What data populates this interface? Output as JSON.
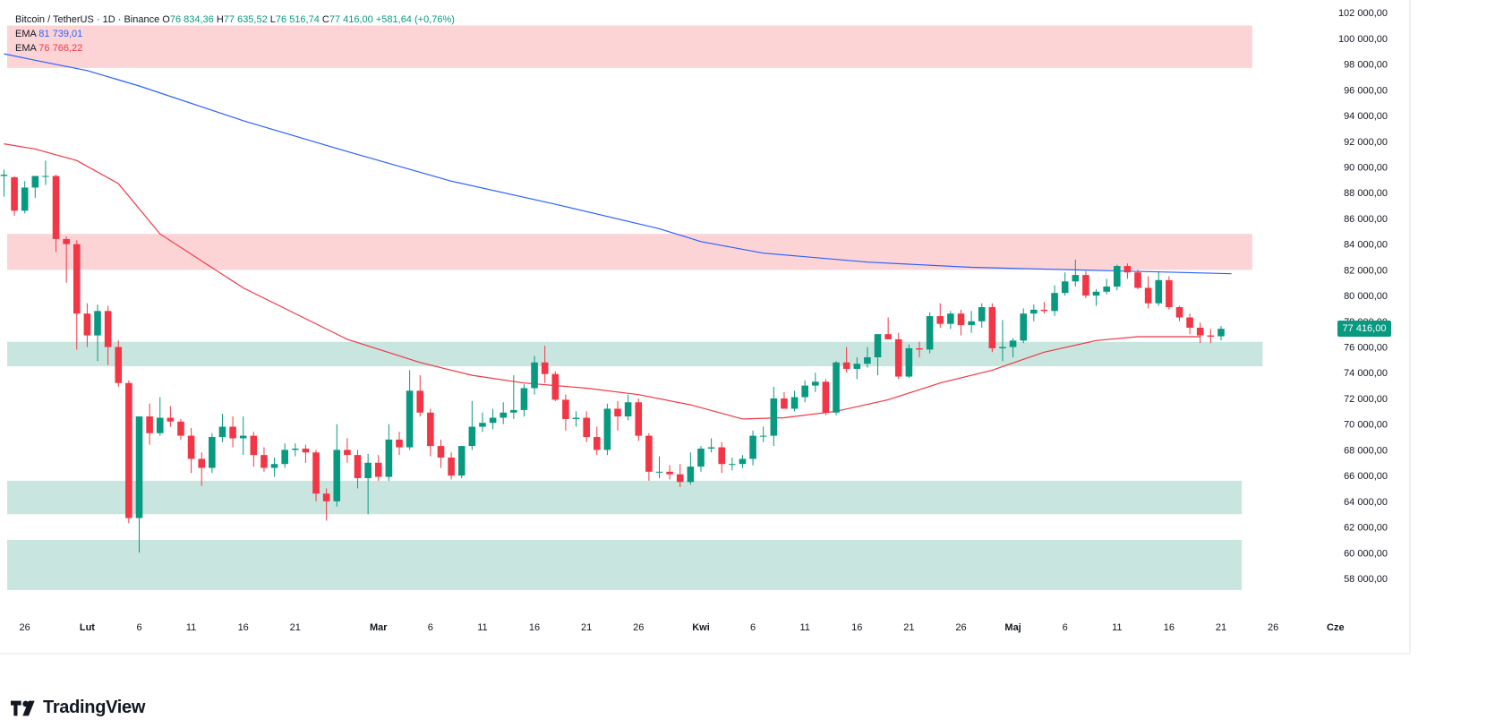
{
  "header": {
    "symbol_line": "Bitcoin / TetherUS · 1D · Binance",
    "ohlc": [
      {
        "key": "O",
        "value": "76 834,36"
      },
      {
        "key": "H",
        "value": "77 635,52"
      },
      {
        "key": "L",
        "value": "76 516,74"
      },
      {
        "key": "C",
        "value": "77 416,00"
      }
    ],
    "change": "+581,64 (+0,76%)",
    "ema_label_1": "EMA",
    "ema_value_1": "81 739,01",
    "ema_label_2": "EMA",
    "ema_value_2": "76 766,22"
  },
  "branding": {
    "logo_text": "TradingView"
  },
  "colors": {
    "up": "#089981",
    "down": "#f23645",
    "ema_slow": "#2962ff",
    "ema_fast": "#f23645",
    "resistance_zone": "#fdd4d6",
    "support_zone": "#c8e6df"
  },
  "chart_data": {
    "type": "candlestick",
    "title": "Bitcoin / TetherUS · 1D · Binance",
    "ylim": [
      56000,
      103000
    ],
    "y_ticks": [
      58000,
      60000,
      62000,
      64000,
      66000,
      68000,
      70000,
      72000,
      74000,
      76000,
      78000,
      80000,
      82000,
      84000,
      86000,
      88000,
      90000,
      92000,
      94000,
      96000,
      98000,
      100000,
      102000
    ],
    "y_tick_labels": [
      "58 000,00",
      "60 000,00",
      "62 000,00",
      "64 000,00",
      "66 000,00",
      "68 000,00",
      "70 000,00",
      "72 000,00",
      "74 000,00",
      "76 000,00",
      "78 000,00",
      "80 000,00",
      "82 000,00",
      "84 000,00",
      "86 000,00",
      "88 000,00",
      "90 000,00",
      "92 000,00",
      "94 000,00",
      "96 000,00",
      "98 000,00",
      "100 000,00",
      "102 000,00"
    ],
    "x_ticks": [
      {
        "day": -1,
        "label": "26"
      },
      {
        "day": 5,
        "label": "Lut"
      },
      {
        "day": 10,
        "label": "6"
      },
      {
        "day": 15,
        "label": "11"
      },
      {
        "day": 20,
        "label": "16"
      },
      {
        "day": 25,
        "label": "21"
      },
      {
        "day": 33,
        "label": "Mar"
      },
      {
        "day": 38,
        "label": "6"
      },
      {
        "day": 43,
        "label": "11"
      },
      {
        "day": 48,
        "label": "16"
      },
      {
        "day": 53,
        "label": "21"
      },
      {
        "day": 58,
        "label": "26"
      },
      {
        "day": 64,
        "label": "Kwi"
      },
      {
        "day": 69,
        "label": "6"
      },
      {
        "day": 74,
        "label": "11"
      },
      {
        "day": 79,
        "label": "16"
      },
      {
        "day": 84,
        "label": "21"
      },
      {
        "day": 89,
        "label": "26"
      },
      {
        "day": 94,
        "label": "Maj"
      },
      {
        "day": 99,
        "label": "6"
      },
      {
        "day": 104,
        "label": "11"
      },
      {
        "day": 109,
        "label": "16"
      },
      {
        "day": 114,
        "label": "21"
      },
      {
        "day": 119,
        "label": "26"
      },
      {
        "day": 125,
        "label": "Cze"
      }
    ],
    "last_price_label": "77 416,00",
    "last_price": 77416,
    "zones": [
      {
        "kind": "resistance",
        "y_from": 97700,
        "y_to": 101000,
        "x_to_day": 117
      },
      {
        "kind": "resistance",
        "y_from": 82000,
        "y_to": 84800,
        "x_to_day": 117
      },
      {
        "kind": "support",
        "y_from": 74500,
        "y_to": 76400,
        "x_to_day": 118
      },
      {
        "kind": "support",
        "y_from": 63000,
        "y_to": 65600,
        "x_to_day": 116
      },
      {
        "kind": "support",
        "y_from": 57100,
        "y_to": 61000,
        "x_to_day": 116
      }
    ],
    "series": [
      {
        "name": "EMA",
        "color": "#2962ff",
        "points": [
          [
            -3,
            98800
          ],
          [
            0,
            98300
          ],
          [
            5,
            97500
          ],
          [
            10,
            96300
          ],
          [
            20,
            93600
          ],
          [
            30,
            91200
          ],
          [
            40,
            88900
          ],
          [
            50,
            87100
          ],
          [
            60,
            85200
          ],
          [
            64,
            84200
          ],
          [
            70,
            83300
          ],
          [
            80,
            82600
          ],
          [
            90,
            82200
          ],
          [
            100,
            82000
          ],
          [
            110,
            81800
          ],
          [
            115,
            81700
          ]
        ]
      },
      {
        "name": "EMA",
        "color": "#f23645",
        "points": [
          [
            -3,
            91800
          ],
          [
            0,
            91400
          ],
          [
            4,
            90500
          ],
          [
            8,
            88700
          ],
          [
            12,
            84800
          ],
          [
            20,
            80600
          ],
          [
            30,
            76600
          ],
          [
            37,
            74800
          ],
          [
            42,
            73800
          ],
          [
            47,
            73200
          ],
          [
            53,
            72800
          ],
          [
            58,
            72300
          ],
          [
            63,
            71500
          ],
          [
            68,
            70400
          ],
          [
            72,
            70500
          ],
          [
            77,
            71000
          ],
          [
            82,
            71900
          ],
          [
            87,
            73200
          ],
          [
            92,
            74200
          ],
          [
            97,
            75600
          ],
          [
            102,
            76500
          ],
          [
            106,
            76800
          ],
          [
            110,
            76800
          ],
          [
            112,
            76800
          ]
        ]
      }
    ],
    "candles": [
      {
        "d": -3,
        "o": 89300,
        "h": 89800,
        "l": 87700,
        "c": 89400
      },
      {
        "d": -2,
        "o": 89200,
        "h": 89300,
        "l": 86200,
        "c": 86600
      },
      {
        "d": -1,
        "o": 86600,
        "h": 88900,
        "l": 86400,
        "c": 88400
      },
      {
        "d": 0,
        "o": 88400,
        "h": 89300,
        "l": 87600,
        "c": 89300
      },
      {
        "d": 1,
        "o": 89300,
        "h": 90500,
        "l": 88600,
        "c": 89300
      },
      {
        "d": 2,
        "o": 89300,
        "h": 89400,
        "l": 83400,
        "c": 84400
      },
      {
        "d": 3,
        "o": 84400,
        "h": 84600,
        "l": 81000,
        "c": 84000
      },
      {
        "d": 4,
        "o": 84000,
        "h": 84300,
        "l": 75800,
        "c": 78600
      },
      {
        "d": 5,
        "o": 78600,
        "h": 79400,
        "l": 76000,
        "c": 76900
      },
      {
        "d": 6,
        "o": 76900,
        "h": 79300,
        "l": 74900,
        "c": 78800
      },
      {
        "d": 7,
        "o": 78800,
        "h": 79200,
        "l": 74600,
        "c": 76000
      },
      {
        "d": 8,
        "o": 76000,
        "h": 76500,
        "l": 72900,
        "c": 73200
      },
      {
        "d": 9,
        "o": 73200,
        "h": 73400,
        "l": 62300,
        "c": 62700
      },
      {
        "d": 10,
        "o": 62700,
        "h": 70600,
        "l": 60000,
        "c": 70600
      },
      {
        "d": 11,
        "o": 70600,
        "h": 71600,
        "l": 68400,
        "c": 69300
      },
      {
        "d": 12,
        "o": 69300,
        "h": 72100,
        "l": 69100,
        "c": 70500
      },
      {
        "d": 13,
        "o": 70500,
        "h": 71400,
        "l": 69800,
        "c": 70200
      },
      {
        "d": 14,
        "o": 70200,
        "h": 70400,
        "l": 68800,
        "c": 69100
      },
      {
        "d": 15,
        "o": 69100,
        "h": 69700,
        "l": 66200,
        "c": 67300
      },
      {
        "d": 16,
        "o": 67300,
        "h": 67800,
        "l": 65200,
        "c": 66600
      },
      {
        "d": 17,
        "o": 66600,
        "h": 69300,
        "l": 66200,
        "c": 69000
      },
      {
        "d": 18,
        "o": 69000,
        "h": 70800,
        "l": 68600,
        "c": 69800
      },
      {
        "d": 19,
        "o": 69800,
        "h": 70600,
        "l": 68200,
        "c": 68900
      },
      {
        "d": 20,
        "o": 68900,
        "h": 70600,
        "l": 67600,
        "c": 69100
      },
      {
        "d": 21,
        "o": 69100,
        "h": 69400,
        "l": 66700,
        "c": 67600
      },
      {
        "d": 22,
        "o": 67600,
        "h": 68200,
        "l": 66300,
        "c": 66600
      },
      {
        "d": 23,
        "o": 66600,
        "h": 67400,
        "l": 65900,
        "c": 66900
      },
      {
        "d": 24,
        "o": 66900,
        "h": 68500,
        "l": 66600,
        "c": 68000
      },
      {
        "d": 25,
        "o": 68000,
        "h": 68500,
        "l": 67500,
        "c": 68100
      },
      {
        "d": 26,
        "o": 68100,
        "h": 68400,
        "l": 67000,
        "c": 67800
      },
      {
        "d": 27,
        "o": 67800,
        "h": 68000,
        "l": 64000,
        "c": 64600
      },
      {
        "d": 28,
        "o": 64600,
        "h": 65000,
        "l": 62500,
        "c": 64000
      },
      {
        "d": 29,
        "o": 64000,
        "h": 70000,
        "l": 63600,
        "c": 68000
      },
      {
        "d": 30,
        "o": 68000,
        "h": 68900,
        "l": 67000,
        "c": 67600
      },
      {
        "d": 31,
        "o": 67600,
        "h": 68000,
        "l": 65000,
        "c": 65800
      },
      {
        "d": 32,
        "o": 65800,
        "h": 67700,
        "l": 63000,
        "c": 67000
      },
      {
        "d": 33,
        "o": 67000,
        "h": 67600,
        "l": 65600,
        "c": 65900
      },
      {
        "d": 34,
        "o": 65900,
        "h": 70000,
        "l": 65600,
        "c": 68800
      },
      {
        "d": 35,
        "o": 68800,
        "h": 69400,
        "l": 67600,
        "c": 68200
      },
      {
        "d": 36,
        "o": 68200,
        "h": 74200,
        "l": 68000,
        "c": 72600
      },
      {
        "d": 37,
        "o": 72600,
        "h": 73800,
        "l": 70600,
        "c": 70900
      },
      {
        "d": 38,
        "o": 70900,
        "h": 71200,
        "l": 67500,
        "c": 68300
      },
      {
        "d": 39,
        "o": 68300,
        "h": 68800,
        "l": 66600,
        "c": 67400
      },
      {
        "d": 40,
        "o": 67400,
        "h": 67800,
        "l": 65700,
        "c": 66000
      },
      {
        "d": 41,
        "o": 66000,
        "h": 68300,
        "l": 65800,
        "c": 68300
      },
      {
        "d": 42,
        "o": 68300,
        "h": 71800,
        "l": 68000,
        "c": 69800
      },
      {
        "d": 43,
        "o": 69800,
        "h": 70900,
        "l": 69400,
        "c": 70100
      },
      {
        "d": 44,
        "o": 70100,
        "h": 71200,
        "l": 69600,
        "c": 70500
      },
      {
        "d": 45,
        "o": 70500,
        "h": 71700,
        "l": 70000,
        "c": 70900
      },
      {
        "d": 46,
        "o": 70900,
        "h": 73800,
        "l": 70400,
        "c": 71100
      },
      {
        "d": 47,
        "o": 71100,
        "h": 73100,
        "l": 70600,
        "c": 72800
      },
      {
        "d": 48,
        "o": 72800,
        "h": 75300,
        "l": 72300,
        "c": 74800
      },
      {
        "d": 49,
        "o": 74800,
        "h": 76100,
        "l": 73200,
        "c": 73900
      },
      {
        "d": 50,
        "o": 73900,
        "h": 74100,
        "l": 71800,
        "c": 71900
      },
      {
        "d": 51,
        "o": 71900,
        "h": 72300,
        "l": 69500,
        "c": 70400
      },
      {
        "d": 52,
        "o": 70400,
        "h": 71000,
        "l": 69800,
        "c": 70500
      },
      {
        "d": 53,
        "o": 70500,
        "h": 71000,
        "l": 68600,
        "c": 69000
      },
      {
        "d": 54,
        "o": 69000,
        "h": 69800,
        "l": 67600,
        "c": 68000
      },
      {
        "d": 55,
        "o": 68000,
        "h": 71600,
        "l": 67600,
        "c": 71200
      },
      {
        "d": 56,
        "o": 71200,
        "h": 71800,
        "l": 69500,
        "c": 70600
      },
      {
        "d": 57,
        "o": 70600,
        "h": 72300,
        "l": 70300,
        "c": 71700
      },
      {
        "d": 58,
        "o": 71700,
        "h": 72000,
        "l": 68700,
        "c": 69100
      },
      {
        "d": 59,
        "o": 69100,
        "h": 69300,
        "l": 65600,
        "c": 66300
      },
      {
        "d": 60,
        "o": 66300,
        "h": 67500,
        "l": 65800,
        "c": 66300
      },
      {
        "d": 61,
        "o": 66300,
        "h": 66800,
        "l": 65700,
        "c": 66100
      },
      {
        "d": 62,
        "o": 66100,
        "h": 66900,
        "l": 65100,
        "c": 65500
      },
      {
        "d": 63,
        "o": 65500,
        "h": 67800,
        "l": 65300,
        "c": 66700
      },
      {
        "d": 64,
        "o": 66700,
        "h": 68300,
        "l": 66300,
        "c": 68100
      },
      {
        "d": 65,
        "o": 68100,
        "h": 68900,
        "l": 67800,
        "c": 68200
      },
      {
        "d": 66,
        "o": 68200,
        "h": 68600,
        "l": 66200,
        "c": 66900
      },
      {
        "d": 67,
        "o": 66900,
        "h": 67400,
        "l": 66400,
        "c": 66900
      },
      {
        "d": 68,
        "o": 66900,
        "h": 67600,
        "l": 66600,
        "c": 67300
      },
      {
        "d": 69,
        "o": 67300,
        "h": 69500,
        "l": 66800,
        "c": 69100
      },
      {
        "d": 70,
        "o": 69100,
        "h": 69800,
        "l": 68600,
        "c": 69100
      },
      {
        "d": 71,
        "o": 69100,
        "h": 72900,
        "l": 68300,
        "c": 72000
      },
      {
        "d": 72,
        "o": 72000,
        "h": 72500,
        "l": 71200,
        "c": 71200
      },
      {
        "d": 73,
        "o": 71200,
        "h": 72600,
        "l": 71000,
        "c": 72100
      },
      {
        "d": 74,
        "o": 72100,
        "h": 73400,
        "l": 71700,
        "c": 73000
      },
      {
        "d": 75,
        "o": 73000,
        "h": 74000,
        "l": 72500,
        "c": 73300
      },
      {
        "d": 76,
        "o": 73300,
        "h": 73500,
        "l": 70700,
        "c": 70900
      },
      {
        "d": 77,
        "o": 70900,
        "h": 74900,
        "l": 70700,
        "c": 74800
      },
      {
        "d": 78,
        "o": 74800,
        "h": 76000,
        "l": 74000,
        "c": 74300
      },
      {
        "d": 79,
        "o": 74300,
        "h": 75200,
        "l": 73500,
        "c": 74700
      },
      {
        "d": 80,
        "o": 74700,
        "h": 76000,
        "l": 74400,
        "c": 75200
      },
      {
        "d": 81,
        "o": 75200,
        "h": 77000,
        "l": 73800,
        "c": 77000
      },
      {
        "d": 82,
        "o": 77000,
        "h": 78300,
        "l": 76700,
        "c": 76600
      },
      {
        "d": 83,
        "o": 76600,
        "h": 77100,
        "l": 73500,
        "c": 73700
      },
      {
        "d": 84,
        "o": 73700,
        "h": 76200,
        "l": 73600,
        "c": 75900
      },
      {
        "d": 85,
        "o": 75900,
        "h": 76400,
        "l": 75200,
        "c": 75800
      },
      {
        "d": 86,
        "o": 75800,
        "h": 78700,
        "l": 75500,
        "c": 78400
      },
      {
        "d": 87,
        "o": 78400,
        "h": 79400,
        "l": 77500,
        "c": 77800
      },
      {
        "d": 88,
        "o": 77800,
        "h": 78800,
        "l": 77400,
        "c": 78600
      },
      {
        "d": 89,
        "o": 78600,
        "h": 78900,
        "l": 76900,
        "c": 77700
      },
      {
        "d": 90,
        "o": 77700,
        "h": 78800,
        "l": 77100,
        "c": 78000
      },
      {
        "d": 91,
        "o": 78000,
        "h": 79400,
        "l": 77500,
        "c": 79100
      },
      {
        "d": 92,
        "o": 79100,
        "h": 79400,
        "l": 75600,
        "c": 75900
      },
      {
        "d": 93,
        "o": 75900,
        "h": 78100,
        "l": 74900,
        "c": 76000
      },
      {
        "d": 94,
        "o": 76000,
        "h": 76700,
        "l": 75200,
        "c": 76500
      },
      {
        "d": 95,
        "o": 76500,
        "h": 79000,
        "l": 76300,
        "c": 78600
      },
      {
        "d": 96,
        "o": 78600,
        "h": 79300,
        "l": 78000,
        "c": 78900
      },
      {
        "d": 97,
        "o": 78900,
        "h": 79500,
        "l": 78600,
        "c": 78800
      },
      {
        "d": 98,
        "o": 78800,
        "h": 80800,
        "l": 78400,
        "c": 80200
      },
      {
        "d": 99,
        "o": 80200,
        "h": 81800,
        "l": 80000,
        "c": 81100
      },
      {
        "d": 100,
        "o": 81100,
        "h": 82800,
        "l": 80700,
        "c": 81600
      },
      {
        "d": 101,
        "o": 81600,
        "h": 81900,
        "l": 79800,
        "c": 80000
      },
      {
        "d": 102,
        "o": 80000,
        "h": 80500,
        "l": 79200,
        "c": 80300
      },
      {
        "d": 103,
        "o": 80300,
        "h": 81300,
        "l": 80100,
        "c": 80700
      },
      {
        "d": 104,
        "o": 80700,
        "h": 82400,
        "l": 80400,
        "c": 82300
      },
      {
        "d": 105,
        "o": 82300,
        "h": 82500,
        "l": 81300,
        "c": 81800
      },
      {
        "d": 106,
        "o": 81800,
        "h": 82000,
        "l": 80500,
        "c": 80600
      },
      {
        "d": 107,
        "o": 80600,
        "h": 81500,
        "l": 79000,
        "c": 79400
      },
      {
        "d": 108,
        "o": 79400,
        "h": 81900,
        "l": 79200,
        "c": 81200
      },
      {
        "d": 109,
        "o": 81200,
        "h": 81500,
        "l": 78900,
        "c": 79100
      },
      {
        "d": 110,
        "o": 79100,
        "h": 79200,
        "l": 78000,
        "c": 78300
      },
      {
        "d": 111,
        "o": 78300,
        "h": 78600,
        "l": 77000,
        "c": 77500
      },
      {
        "d": 112,
        "o": 77500,
        "h": 77900,
        "l": 76300,
        "c": 76900
      },
      {
        "d": 113,
        "o": 76900,
        "h": 77400,
        "l": 76300,
        "c": 76800
      },
      {
        "d": 114,
        "o": 76834,
        "h": 77636,
        "l": 76517,
        "c": 77416
      }
    ]
  }
}
